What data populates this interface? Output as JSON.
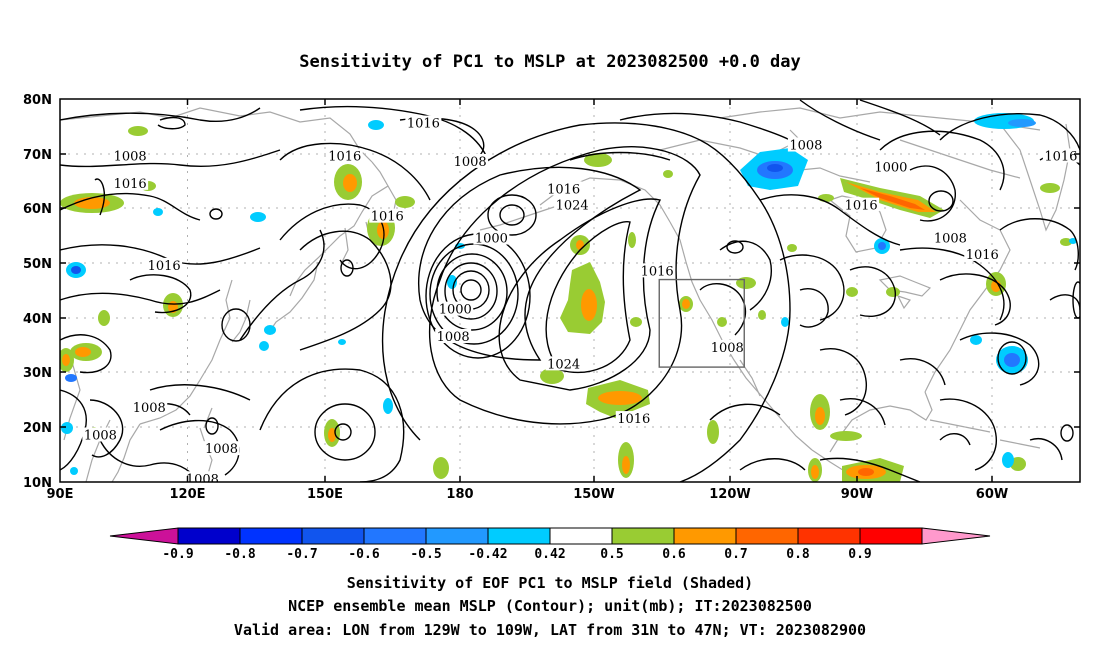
{
  "title": "Sensitivity of PC1 to MSLP at 2023082500 +0.0 day",
  "map": {
    "lat_ticks": [
      "80N",
      "70N",
      "60N",
      "50N",
      "40N",
      "30N",
      "20N",
      "10N"
    ],
    "lon_ticks": [
      "90E",
      "120E",
      "150E",
      "180",
      "150W",
      "120W",
      "90W",
      "60W"
    ],
    "lon_range": [
      90,
      330
    ],
    "lat_range": [
      10,
      80
    ],
    "valid_box": {
      "lon": [
        231,
        251
      ],
      "lat": [
        31,
        47
      ]
    },
    "grid": true
  },
  "contour_labels": [
    {
      "text": "1016",
      "lon": 175.5,
      "lat": 75.5
    },
    {
      "text": "1008",
      "lon": 265.5,
      "lat": 71.5
    },
    {
      "text": "1008",
      "lon": 106.5,
      "lat": 69.5
    },
    {
      "text": "1016",
      "lon": 157,
      "lat": 69.5
    },
    {
      "text": "1008",
      "lon": 186.5,
      "lat": 68.5
    },
    {
      "text": "1000",
      "lon": 285.5,
      "lat": 67.5
    },
    {
      "text": "1016",
      "lon": 325.5,
      "lat": 69.5
    },
    {
      "text": "1016",
      "lon": 106.5,
      "lat": 64.5
    },
    {
      "text": "1016",
      "lon": 208.5,
      "lat": 63.5
    },
    {
      "text": "1024",
      "lon": 210.5,
      "lat": 60.5
    },
    {
      "text": "1016",
      "lon": 278.5,
      "lat": 60.5
    },
    {
      "text": "1016",
      "lon": 167,
      "lat": 58.5
    },
    {
      "text": "1000",
      "lon": 191.5,
      "lat": 54.5
    },
    {
      "text": "1008",
      "lon": 299.5,
      "lat": 54.5
    },
    {
      "text": "1016",
      "lon": 307,
      "lat": 51.5
    },
    {
      "text": "1016",
      "lon": 114.5,
      "lat": 49.5
    },
    {
      "text": "1016",
      "lon": 230.5,
      "lat": 48.5
    },
    {
      "text": "1000",
      "lon": 183,
      "lat": 41.5
    },
    {
      "text": "1008",
      "lon": 182.5,
      "lat": 36.5
    },
    {
      "text": "1008",
      "lon": 247,
      "lat": 34.5
    },
    {
      "text": "1024",
      "lon": 208.5,
      "lat": 31.5
    },
    {
      "text": "1008",
      "lon": 111,
      "lat": 23.5
    },
    {
      "text": "1016",
      "lon": 225,
      "lat": 21.5
    },
    {
      "text": "1008",
      "lon": 99.5,
      "lat": 18.5
    },
    {
      "text": "1008",
      "lon": 128,
      "lat": 16
    },
    {
      "text": "1008",
      "lon": 123.5,
      "lat": 10.5
    }
  ],
  "colorbar": {
    "labels": [
      "-0.9",
      "-0.8",
      "-0.7",
      "-0.6",
      "-0.5",
      "-0.42",
      "0.42",
      "0.5",
      "0.6",
      "0.7",
      "0.8",
      "0.9"
    ],
    "colors": [
      "#cc1199",
      "#0000cc",
      "#0033ff",
      "#1155ee",
      "#2277ff",
      "#2299ff",
      "#00ccff",
      "#ffffff",
      "#99cc33",
      "#ff9900",
      "#ff6600",
      "#ff3300",
      "#ff0000",
      "#ff99cc"
    ]
  },
  "captions": [
    "Sensitivity of EOF PC1 to MSLP field (Shaded)",
    "NCEP ensemble mean MSLP (Contour); unit(mb); IT:2023082500",
    "Valid area: LON from 129W to 109W, LAT from 31N to 47N; VT: 2023082900"
  ]
}
